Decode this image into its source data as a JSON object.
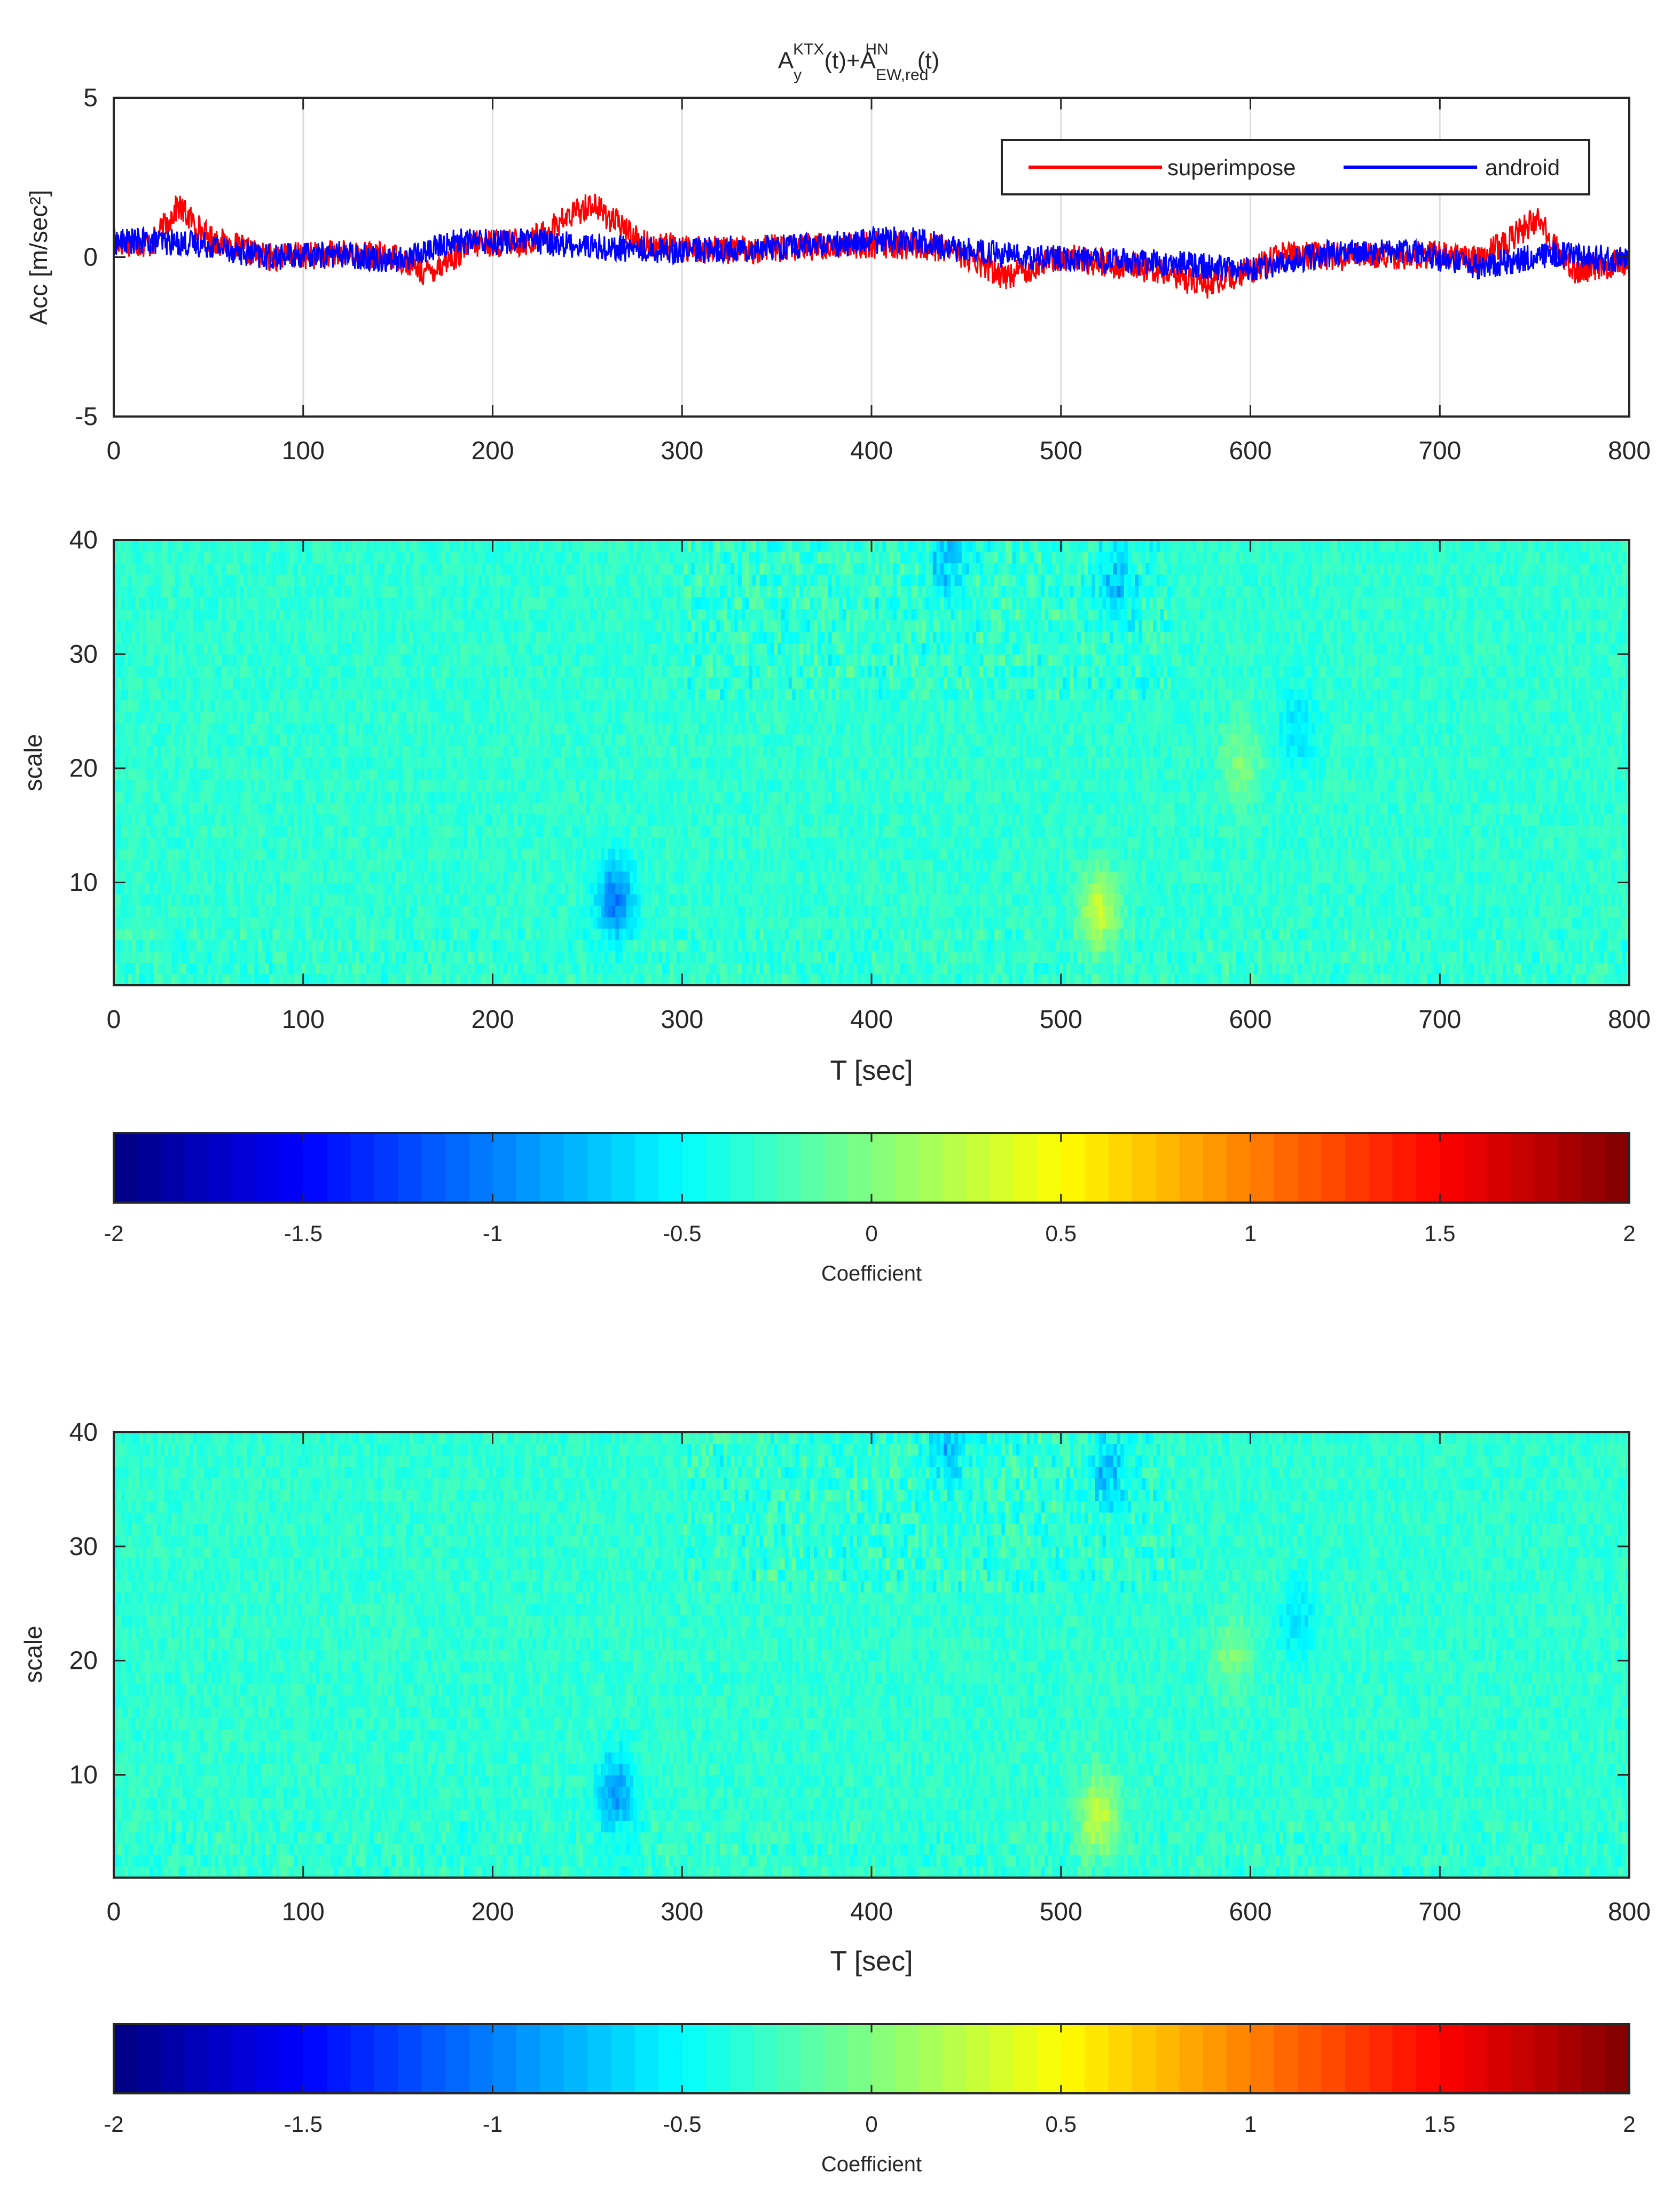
{
  "chart_data": [
    {
      "type": "line",
      "title_parts": {
        "a1": "A",
        "sub1": "y",
        "sup1": "KTX",
        "mid": "(t)+A",
        "sub2": "EW,red",
        "sup2": "HN",
        "end": "(t)"
      },
      "xlabel": "",
      "ylabel": "Acc [m/sec²]",
      "xlim": [
        0,
        800
      ],
      "ylim": [
        -5,
        5
      ],
      "xticks": [
        "0",
        "100",
        "200",
        "300",
        "400",
        "500",
        "600",
        "700",
        "800"
      ],
      "yticks": [
        "-5",
        "0",
        "5"
      ],
      "grid": "vertical",
      "legend_position": "top-right",
      "series": [
        {
          "name": "superimpose",
          "color": "#ff0000",
          "x": [
            0,
            20,
            34,
            50,
            80,
            120,
            150,
            165,
            190,
            220,
            252,
            280,
            320,
            360,
            400,
            440,
            470,
            500,
            540,
            580,
            620,
            650,
            700,
            720,
            752,
            770,
            800
          ],
          "y": [
            0.5,
            0.4,
            1.6,
            0.6,
            0.0,
            0.1,
            0.0,
            -0.5,
            0.4,
            0.5,
            1.7,
            0.4,
            0.2,
            0.3,
            0.4,
            0.3,
            -0.6,
            0.0,
            -0.3,
            -0.9,
            0.1,
            0.0,
            0.1,
            -0.1,
            1.2,
            -0.4,
            -0.2
          ]
        },
        {
          "name": "android",
          "color": "#0000ff",
          "x": [
            0,
            20,
            50,
            80,
            120,
            150,
            180,
            220,
            260,
            300,
            340,
            380,
            420,
            440,
            480,
            520,
            560,
            600,
            640,
            680,
            720,
            760,
            800
          ],
          "y": [
            0.5,
            0.5,
            0.4,
            0.0,
            0.1,
            -0.1,
            0.5,
            0.5,
            0.3,
            0.2,
            0.3,
            0.4,
            0.6,
            0.3,
            0.0,
            -0.1,
            -0.2,
            -0.4,
            0.1,
            0.2,
            -0.3,
            0.1,
            -0.1
          ]
        }
      ]
    },
    {
      "type": "heatmap",
      "xlabel": "T [sec]",
      "ylabel": "scale",
      "xlim": [
        0,
        800
      ],
      "ylim": [
        1,
        40
      ],
      "xticks": [
        "0",
        "100",
        "200",
        "300",
        "400",
        "500",
        "600",
        "700",
        "800"
      ],
      "yticks": [
        "10",
        "20",
        "30",
        "40"
      ],
      "clim": [
        -2,
        2
      ],
      "colormap": "jet",
      "colorbar_ticks": [
        "-2",
        "-1.5",
        "-1",
        "-0.5",
        "0",
        "0.5",
        "1",
        "1.5",
        "2"
      ],
      "colorbar_label": "Coefficient",
      "features": [
        {
          "t": 265,
          "scale": 8,
          "value": -0.7
        },
        {
          "t": 520,
          "scale": 7,
          "value": 0.6
        },
        {
          "t": 440,
          "scale": 38,
          "value": -0.4
        },
        {
          "t": 530,
          "scale": 36,
          "value": -0.4
        },
        {
          "t": 595,
          "scale": 20,
          "value": 0.3
        },
        {
          "t": 625,
          "scale": 23,
          "value": -0.3
        }
      ]
    },
    {
      "type": "heatmap",
      "xlabel": "T [sec]",
      "ylabel": "scale",
      "xlim": [
        0,
        800
      ],
      "ylim": [
        1,
        40
      ],
      "xticks": [
        "0",
        "100",
        "200",
        "300",
        "400",
        "500",
        "600",
        "700",
        "800"
      ],
      "yticks": [
        "10",
        "20",
        "30",
        "40"
      ],
      "clim": [
        -2,
        2
      ],
      "colormap": "jet",
      "colorbar_ticks": [
        "-2",
        "-1.5",
        "-1",
        "-0.5",
        "0",
        "0.5",
        "1",
        "1.5",
        "2"
      ],
      "colorbar_label": "Coefficient",
      "features": [
        {
          "t": 265,
          "scale": 8,
          "value": -0.6
        },
        {
          "t": 520,
          "scale": 6,
          "value": 0.6
        },
        {
          "t": 440,
          "scale": 38,
          "value": -0.4
        },
        {
          "t": 525,
          "scale": 36,
          "value": -0.4
        },
        {
          "t": 590,
          "scale": 20,
          "value": 0.3
        },
        {
          "t": 625,
          "scale": 23,
          "value": -0.3
        }
      ]
    }
  ]
}
